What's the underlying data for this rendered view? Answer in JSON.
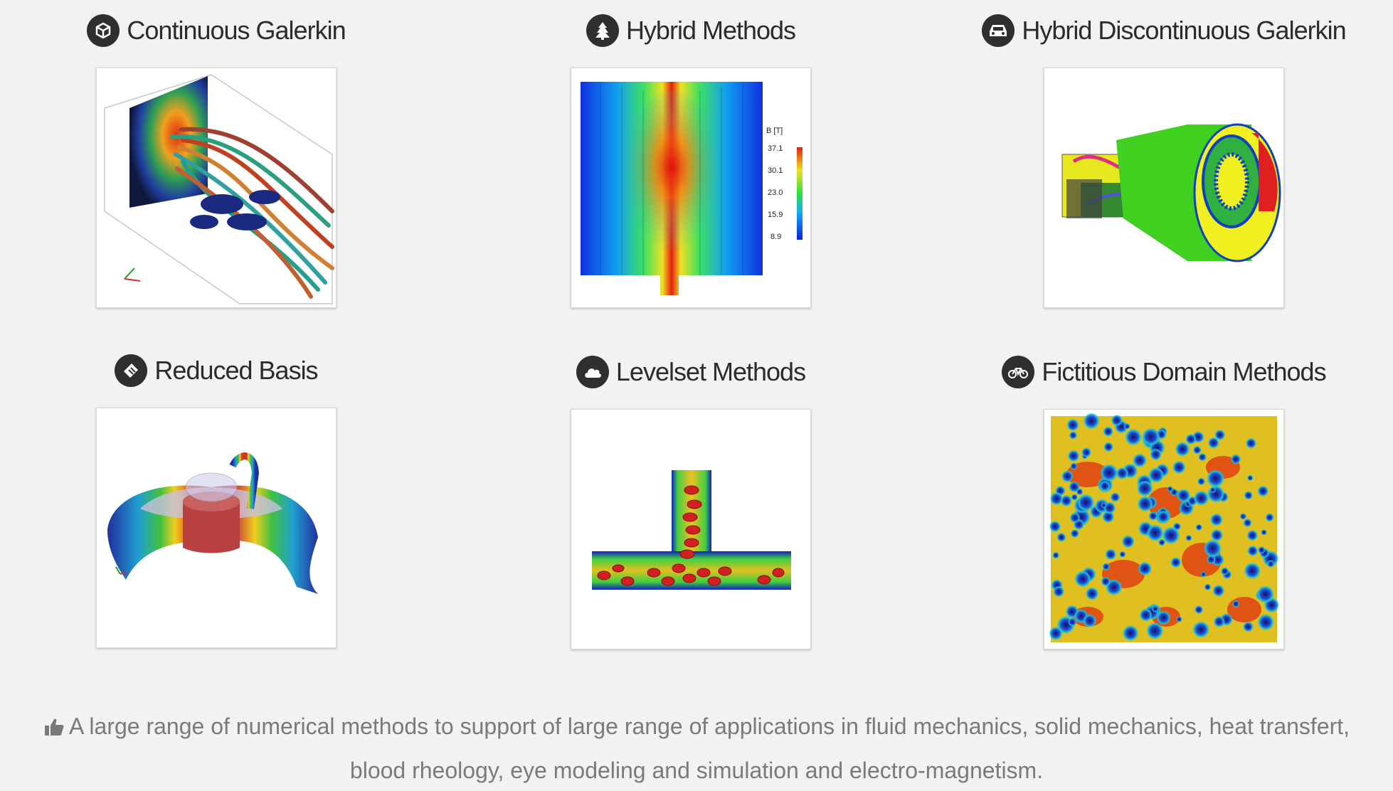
{
  "cards": [
    {
      "title": "Continuous Galerkin",
      "icon": "cube-icon"
    },
    {
      "title": "Hybrid Methods",
      "icon": "tree-icon"
    },
    {
      "title": "Hybrid Discontinuous Galerkin",
      "icon": "car-icon"
    },
    {
      "title": "Reduced Basis",
      "icon": "ticket-icon"
    },
    {
      "title": "Levelset Methods",
      "icon": "cloud-icon"
    },
    {
      "title": "Fictitious Domain Methods",
      "icon": "bicycle-icon"
    }
  ],
  "colorbar": {
    "title": "B [T]",
    "ticks": [
      "37.1",
      "30.1",
      "23.0",
      "15.9",
      "8.9"
    ]
  },
  "footer": {
    "icon": "thumbs-up-icon",
    "line1": "A large range of numerical methods to support of large range of applications in fluid mechanics, solid mechanics, heat transfert,",
    "line2": "blood rheology, eye modeling and simulation and electro-magnetism."
  },
  "colors": {
    "icon_bg": "#2f2f2f",
    "text": "#2b2b2b",
    "footer_text": "#7a7a7a",
    "page_bg": "#f2f2f2"
  }
}
